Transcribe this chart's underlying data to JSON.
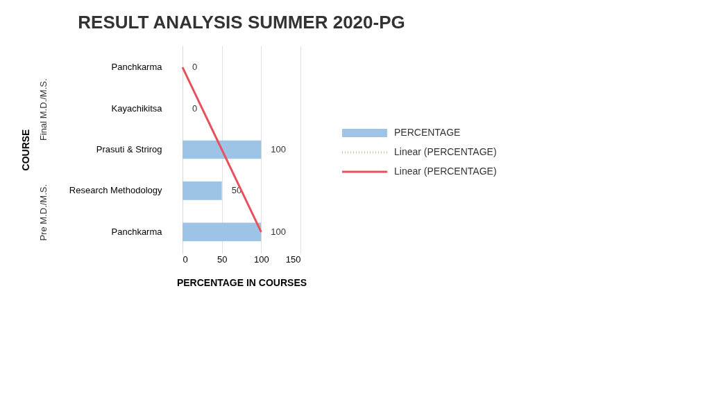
{
  "chart_data": {
    "type": "bar",
    "orientation": "horizontal",
    "title": "RESULT ANALYSIS SUMMER 2020-PG",
    "xlabel": "PERCENTAGE IN COURSES",
    "ylabel": "COURSE",
    "categories": [
      "Panchkarma",
      "Kayachikitsa",
      "Prasuti & Strirog",
      "Research Methodology",
      "Panchkarma"
    ],
    "series": [
      {
        "name": "PERCENTAGE",
        "color": "#9dc3e6",
        "values": [
          0,
          0,
          100,
          50,
          100
        ],
        "value_labels": [
          "0",
          "0",
          "100",
          "50",
          "100"
        ]
      },
      {
        "name": "Linear (PERCENTAGE)",
        "type": "line",
        "color": "#ffc000",
        "line_style": "dotted",
        "values": [
          null,
          null,
          null,
          null,
          null
        ]
      },
      {
        "name": "Linear (PERCENTAGE)",
        "type": "line",
        "color": "#e8505b",
        "line_style": "solid",
        "values": [
          0,
          25,
          50,
          75,
          100
        ]
      }
    ],
    "annotations": [
      "Final M.D./M.S.",
      "Pre M.D./M.S."
    ],
    "xlim": [
      0,
      150
    ],
    "xticks": [
      0,
      50,
      100,
      150
    ],
    "grid": "x",
    "legend": "right"
  }
}
